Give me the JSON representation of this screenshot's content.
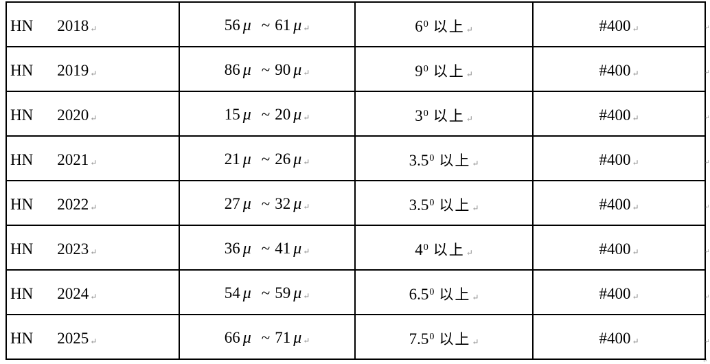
{
  "page": {
    "background_color": "#ffffff",
    "border_color": "#000000",
    "text_color": "#000000",
    "mark_color": "#8a8a8a"
  },
  "symbols": {
    "mu": "μ",
    "tilde": "~",
    "cell_end_mark": "↵",
    "row_end_mark": "↵"
  },
  "table": {
    "columns": [
      "model",
      "thickness_range",
      "angle",
      "grit"
    ],
    "rows": [
      {
        "prefix": "HN",
        "year": "2018",
        "range_from": "56",
        "range_to": "61",
        "angle": "6",
        "angle_sup": "0",
        "angle_suffix": "以上",
        "grit": "#400"
      },
      {
        "prefix": "HN",
        "year": "2019",
        "range_from": "86",
        "range_to": "90",
        "angle": "9",
        "angle_sup": "0",
        "angle_suffix": "以上",
        "grit": "#400"
      },
      {
        "prefix": "HN",
        "year": "2020",
        "range_from": "15",
        "range_to": "20",
        "angle": "3",
        "angle_sup": "0",
        "angle_suffix": "以上",
        "grit": "#400"
      },
      {
        "prefix": "HN",
        "year": "2021",
        "range_from": "21",
        "range_to": "26",
        "angle": "3.5",
        "angle_sup": "0",
        "angle_suffix": "以上",
        "grit": "#400"
      },
      {
        "prefix": "HN",
        "year": "2022",
        "range_from": "27",
        "range_to": "32",
        "angle": "3.5",
        "angle_sup": "0",
        "angle_suffix": "以上",
        "grit": "#400"
      },
      {
        "prefix": "HN",
        "year": "2023",
        "range_from": "36",
        "range_to": "41",
        "angle": "4",
        "angle_sup": "0",
        "angle_suffix": "以上",
        "grit": "#400"
      },
      {
        "prefix": "HN",
        "year": "2024",
        "range_from": "54",
        "range_to": "59",
        "angle": "6.5",
        "angle_sup": "0",
        "angle_suffix": "以上",
        "grit": "#400"
      },
      {
        "prefix": "HN",
        "year": "2025",
        "range_from": "66",
        "range_to": "71",
        "angle": "7.5",
        "angle_sup": "0",
        "angle_suffix": "以上",
        "grit": "#400"
      }
    ]
  }
}
